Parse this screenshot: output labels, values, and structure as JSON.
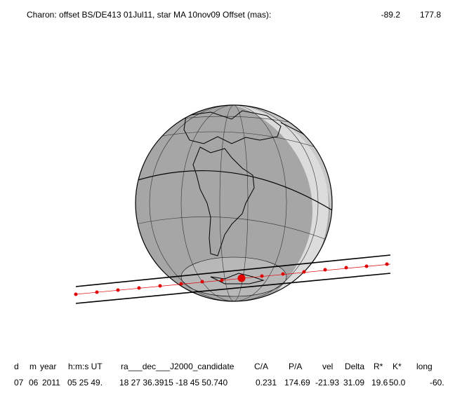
{
  "title": "Charon: offset BS/DE413 01Jul11, star MA 10nov09  Offset (mas):",
  "offset": [
    "-89.2",
    "177.8"
  ],
  "table": {
    "header": [
      "d",
      "m",
      "year",
      "h:m:s UT",
      "ra___dec___J2000_candidate",
      "C/A",
      "P/A",
      "vel",
      "Delta",
      "R*",
      "K*",
      "long"
    ],
    "rows": [
      [
        "07",
        "06",
        "2011",
        "05 25 49.",
        "18 27 36.3915 -18 45  50.740",
        "0.231",
        "174.69",
        "-21.93",
        "31.09",
        "19.6",
        "50.0",
        "-60."
      ]
    ]
  }
}
